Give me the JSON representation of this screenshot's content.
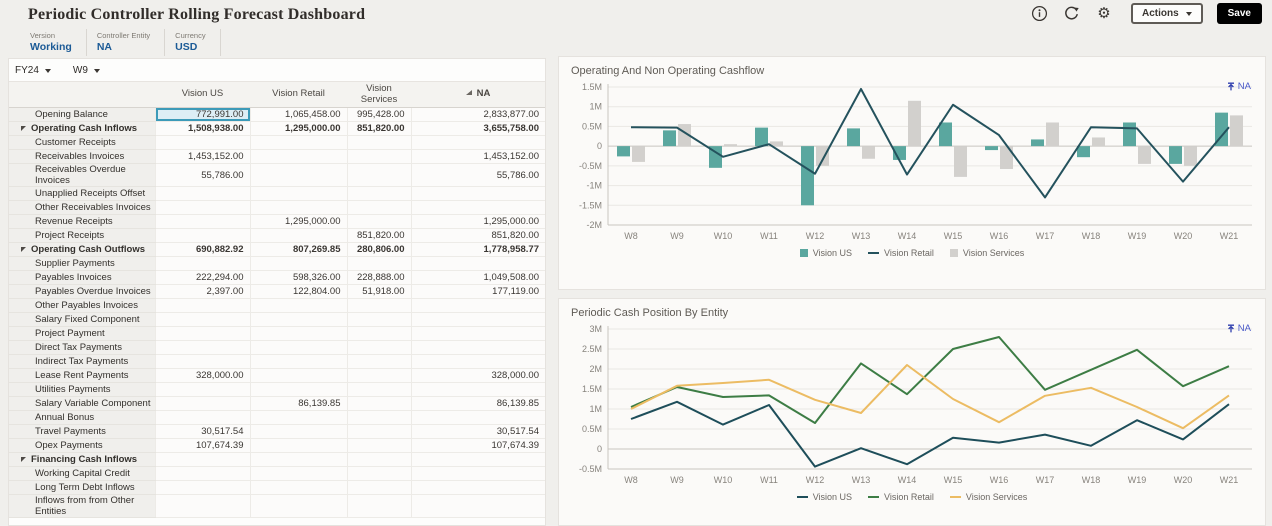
{
  "header": {
    "title": "Periodic Controller Rolling Forecast Dashboard",
    "actions_label": "Actions",
    "save_label": "Save"
  },
  "pov": {
    "items": [
      {
        "label": "Version",
        "value": "Working"
      },
      {
        "label": "Controller Entity",
        "value": "NA"
      },
      {
        "label": "Currency",
        "value": "USD"
      }
    ]
  },
  "grid": {
    "year_selector": "FY24",
    "week_selector": "W9",
    "columns": [
      "",
      "Vision US",
      "Vision Retail",
      "Vision Services",
      "NA"
    ],
    "selected": {
      "row": 0,
      "col": 0
    },
    "rows": [
      {
        "label": "Opening Balance",
        "parent": false,
        "values": [
          "772,991.00",
          "1,065,458.00",
          "995,428.00",
          "2,833,877.00"
        ]
      },
      {
        "label": "Operating Cash Inflows",
        "parent": true,
        "values": [
          "1,508,938.00",
          "1,295,000.00",
          "851,820.00",
          "3,655,758.00"
        ]
      },
      {
        "label": "Customer Receipts",
        "parent": false,
        "values": [
          "",
          "",
          "",
          ""
        ]
      },
      {
        "label": "Receivables Invoices",
        "parent": false,
        "values": [
          "1,453,152.00",
          "",
          "",
          "1,453,152.00"
        ]
      },
      {
        "label": "Receivables Overdue Invoices",
        "parent": false,
        "values": [
          "55,786.00",
          "",
          "",
          "55,786.00"
        ]
      },
      {
        "label": "Unapplied Receipts Offset",
        "parent": false,
        "values": [
          "",
          "",
          "",
          ""
        ]
      },
      {
        "label": "Other Receivables Invoices",
        "parent": false,
        "values": [
          "",
          "",
          "",
          ""
        ]
      },
      {
        "label": "Revenue Receipts",
        "parent": false,
        "values": [
          "",
          "1,295,000.00",
          "",
          "1,295,000.00"
        ]
      },
      {
        "label": "Project Receipts",
        "parent": false,
        "values": [
          "",
          "",
          "851,820.00",
          "851,820.00"
        ]
      },
      {
        "label": "Operating Cash Outflows",
        "parent": true,
        "values": [
          "690,882.92",
          "807,269.85",
          "280,806.00",
          "1,778,958.77"
        ]
      },
      {
        "label": "Supplier Payments",
        "parent": false,
        "values": [
          "",
          "",
          "",
          ""
        ]
      },
      {
        "label": "Payables Invoices",
        "parent": false,
        "values": [
          "222,294.00",
          "598,326.00",
          "228,888.00",
          "1,049,508.00"
        ]
      },
      {
        "label": "Payables Overdue Invoices",
        "parent": false,
        "values": [
          "2,397.00",
          "122,804.00",
          "51,918.00",
          "177,119.00"
        ]
      },
      {
        "label": "Other Payables Invoices",
        "parent": false,
        "values": [
          "",
          "",
          "",
          ""
        ]
      },
      {
        "label": "Salary Fixed  Component",
        "parent": false,
        "values": [
          "",
          "",
          "",
          ""
        ]
      },
      {
        "label": "Project Payment",
        "parent": false,
        "values": [
          "",
          "",
          "",
          ""
        ]
      },
      {
        "label": "Direct Tax Payments",
        "parent": false,
        "values": [
          "",
          "",
          "",
          ""
        ]
      },
      {
        "label": "Indirect Tax Payments",
        "parent": false,
        "values": [
          "",
          "",
          "",
          ""
        ]
      },
      {
        "label": "Lease Rent Payments",
        "parent": false,
        "values": [
          "328,000.00",
          "",
          "",
          "328,000.00"
        ]
      },
      {
        "label": "Utilities Payments",
        "parent": false,
        "values": [
          "",
          "",
          "",
          ""
        ]
      },
      {
        "label": "Salary Variable Component",
        "parent": false,
        "values": [
          "",
          "86,139.85",
          "",
          "86,139.85"
        ]
      },
      {
        "label": "Annual Bonus",
        "parent": false,
        "values": [
          "",
          "",
          "",
          ""
        ]
      },
      {
        "label": "Travel Payments",
        "parent": false,
        "values": [
          "30,517.54",
          "",
          "",
          "30,517.54"
        ]
      },
      {
        "label": "Opex Payments",
        "parent": false,
        "values": [
          "107,674.39",
          "",
          "",
          "107,674.39"
        ]
      },
      {
        "label": "Financing Cash Inflows",
        "parent": true,
        "values": [
          "",
          "",
          "",
          ""
        ]
      },
      {
        "label": "Working Capital Credit",
        "parent": false,
        "values": [
          "",
          "",
          "",
          ""
        ]
      },
      {
        "label": "Long Term Debt Inflows",
        "parent": false,
        "values": [
          "",
          "",
          "",
          ""
        ]
      },
      {
        "label": "Inflows from from Other Entities",
        "parent": false,
        "values": [
          "",
          "",
          "",
          ""
        ]
      }
    ]
  },
  "chart_data": [
    {
      "type": "combo",
      "title": "Operating And Non Operating Cashflow",
      "drill_label": "NA",
      "categories": [
        "W8",
        "W9",
        "W10",
        "W11",
        "W12",
        "W13",
        "W14",
        "W15",
        "W16",
        "W17",
        "W18",
        "W19",
        "W20",
        "W21"
      ],
      "ylim": [
        -2,
        1.5
      ],
      "yticks": [
        {
          "v": 1.5,
          "label": "1.5M"
        },
        {
          "v": 1,
          "label": "1M"
        },
        {
          "v": 0.5,
          "label": "0.5M"
        },
        {
          "v": 0,
          "label": "0"
        },
        {
          "v": -0.5,
          "label": "-0.5M"
        },
        {
          "v": -1,
          "label": "-1M"
        },
        {
          "v": -1.5,
          "label": "-1.5M"
        },
        {
          "v": -2,
          "label": "-2M"
        }
      ],
      "legend_position": "bottom",
      "series": [
        {
          "name": "Vision US",
          "type": "bar",
          "color": "#5aa79f",
          "values": [
            -0.26,
            0.4,
            -0.55,
            0.47,
            -1.5,
            0.45,
            -0.35,
            0.6,
            -0.1,
            0.17,
            -0.28,
            0.6,
            -0.45,
            0.85
          ]
        },
        {
          "name": "Vision Retail",
          "type": "line",
          "color": "#24525d",
          "values": [
            0.48,
            0.47,
            -0.27,
            0.05,
            -0.7,
            1.45,
            -0.72,
            1.05,
            0.28,
            -1.3,
            0.48,
            0.45,
            -0.9,
            0.48
          ]
        },
        {
          "name": "Vision Services",
          "type": "bar",
          "color": "#d2d0cd",
          "values": [
            -0.4,
            0.56,
            0.05,
            0.12,
            -0.5,
            -0.32,
            1.15,
            -0.78,
            -0.58,
            0.6,
            0.22,
            -0.45,
            -0.5,
            0.78
          ]
        }
      ]
    },
    {
      "type": "line",
      "title": "Periodic Cash Position By Entity",
      "drill_label": "NA",
      "categories": [
        "W8",
        "W9",
        "W10",
        "W11",
        "W12",
        "W13",
        "W14",
        "W15",
        "W16",
        "W17",
        "W18",
        "W19",
        "W20",
        "W21"
      ],
      "ylim": [
        -0.5,
        3
      ],
      "yticks": [
        {
          "v": 3,
          "label": "3M"
        },
        {
          "v": 2.5,
          "label": "2.5M"
        },
        {
          "v": 2,
          "label": "2M"
        },
        {
          "v": 1.5,
          "label": "1.5M"
        },
        {
          "v": 1,
          "label": "1M"
        },
        {
          "v": 0.5,
          "label": "0.5M"
        },
        {
          "v": 0,
          "label": "0"
        },
        {
          "v": -0.5,
          "label": "-0.5M"
        }
      ],
      "legend_position": "bottom",
      "series": [
        {
          "name": "Vision US",
          "type": "line",
          "color": "#1e4e5a",
          "values": [
            0.75,
            1.18,
            0.61,
            1.1,
            -0.44,
            0.02,
            -0.38,
            0.28,
            0.16,
            0.36,
            0.08,
            0.72,
            0.24,
            1.12
          ]
        },
        {
          "name": "Vision Retail",
          "type": "line",
          "color": "#3d7d45",
          "values": [
            1.05,
            1.55,
            1.3,
            1.34,
            0.65,
            2.14,
            1.37,
            2.5,
            2.8,
            1.48,
            1.98,
            2.48,
            1.57,
            2.07
          ]
        },
        {
          "name": "Vision Services",
          "type": "line",
          "color": "#ecbc63",
          "values": [
            1.0,
            1.58,
            1.65,
            1.73,
            1.23,
            0.9,
            2.1,
            1.25,
            0.67,
            1.33,
            1.53,
            1.05,
            0.52,
            1.34
          ]
        }
      ]
    }
  ],
  "colors": {
    "pov_value_blue": "#1b5a96",
    "drill_link_blue": "#4a5ac9",
    "selected_cell_border": "#3c9ab8",
    "save_button_bg": "#000000"
  }
}
